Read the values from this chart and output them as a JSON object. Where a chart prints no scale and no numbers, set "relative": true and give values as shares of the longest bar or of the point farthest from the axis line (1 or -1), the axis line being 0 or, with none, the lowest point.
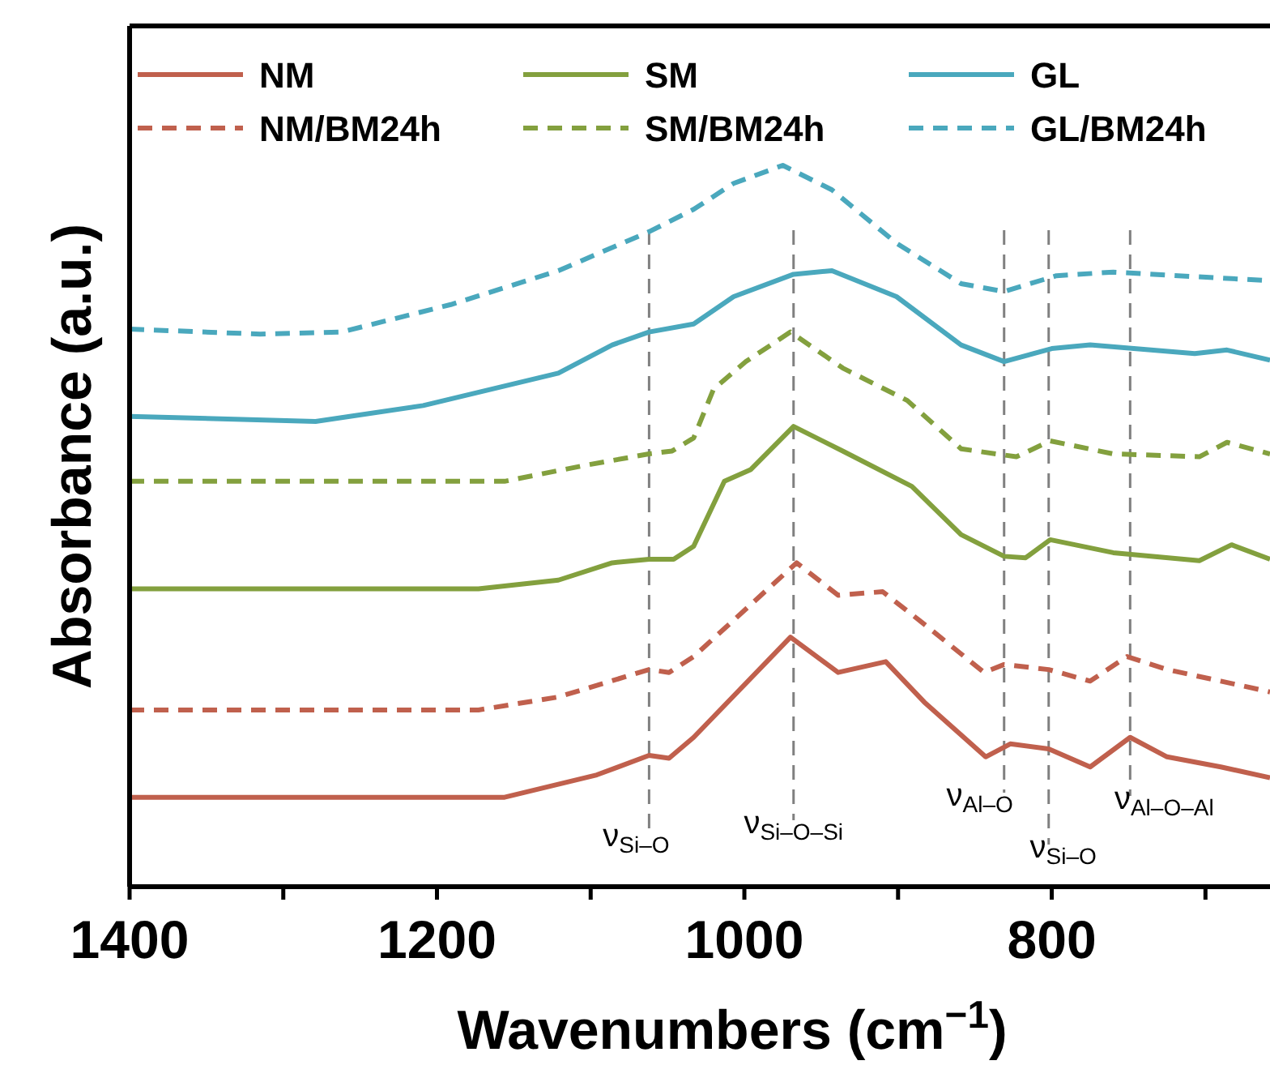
{
  "chart_data": {
    "type": "line",
    "relative": true,
    "xlabel": "Wavenumbers (cm$^{−1}$)",
    "ylabel": "Absorbance (a.u.)",
    "xlim": [
      1400,
      658
    ],
    "xticks": [
      1400,
      {
        "value": 1300,
        "label": null
      },
      1200,
      {
        "value": 1100,
        "label": null
      },
      1000,
      {
        "value": 900,
        "label": null
      },
      800,
      {
        "value": 700,
        "label": null
      }
    ],
    "tick_labels": "x",
    "grid": false,
    "legend": "top",
    "marker": "none",
    "series": [
      {
        "name": "NM",
        "color": "#c0604d",
        "line_style": "solid",
        "x": [
          1400,
          1156,
          1096,
          1062,
          1049,
          1033,
          970,
          939,
          908,
          883,
          843,
          827,
          802,
          775,
          749,
          725,
          690,
          658
        ],
        "values": [
          0.124,
          0.124,
          0.155,
          0.182,
          0.178,
          0.207,
          0.346,
          0.297,
          0.312,
          0.256,
          0.18,
          0.198,
          0.191,
          0.166,
          0.207,
          0.18,
          0.166,
          0.151
        ]
      },
      {
        "name": "SM",
        "color": "#83a03e",
        "line_style": "solid",
        "x": [
          1400,
          1173,
          1121,
          1086,
          1062,
          1046,
          1033,
          1013,
          996,
          968,
          936,
          891,
          859,
          831,
          817,
          801,
          760,
          704,
          683,
          658
        ],
        "values": [
          0.413,
          0.413,
          0.425,
          0.449,
          0.454,
          0.454,
          0.472,
          0.562,
          0.578,
          0.638,
          0.604,
          0.555,
          0.488,
          0.458,
          0.456,
          0.481,
          0.463,
          0.452,
          0.474,
          0.454
        ]
      },
      {
        "name": "GL",
        "color": "#4aa8bd",
        "line_style": "solid",
        "x": [
          1400,
          1279,
          1209,
          1121,
          1086,
          1062,
          1033,
          1007,
          968,
          943,
          901,
          859,
          831,
          800,
          775,
          707,
          686,
          658
        ],
        "values": [
          0.652,
          0.645,
          0.667,
          0.712,
          0.751,
          0.769,
          0.78,
          0.818,
          0.849,
          0.854,
          0.818,
          0.751,
          0.728,
          0.746,
          0.751,
          0.739,
          0.744,
          0.73
        ]
      },
      {
        "name": "NM/BM24h",
        "color": "#c0604d",
        "line_style": "dashed",
        "x": [
          1400,
          1173,
          1121,
          1062,
          1049,
          1033,
          966,
          939,
          910,
          886,
          844,
          831,
          802,
          775,
          751,
          725,
          690,
          658
        ],
        "values": [
          0.245,
          0.245,
          0.263,
          0.301,
          0.297,
          0.319,
          0.449,
          0.404,
          0.409,
          0.369,
          0.297,
          0.308,
          0.301,
          0.285,
          0.319,
          0.301,
          0.285,
          0.27
        ]
      },
      {
        "name": "SM/BM24h",
        "color": "#83a03e",
        "line_style": "dashed",
        "x": [
          1400,
          1156,
          1104,
          1062,
          1047,
          1033,
          1020,
          999,
          970,
          936,
          894,
          859,
          823,
          801,
          760,
          704,
          686,
          658
        ],
        "values": [
          0.562,
          0.562,
          0.584,
          0.6,
          0.604,
          0.622,
          0.69,
          0.728,
          0.769,
          0.719,
          0.674,
          0.607,
          0.596,
          0.618,
          0.6,
          0.596,
          0.616,
          0.6
        ]
      },
      {
        "name": "GL/BM24h",
        "color": "#4aa8bd",
        "line_style": "dashed",
        "x": [
          1400,
          1315,
          1262,
          1191,
          1121,
          1062,
          1033,
          1007,
          975,
          943,
          901,
          859,
          831,
          797,
          760,
          658
        ],
        "values": [
          0.773,
          0.766,
          0.769,
          0.807,
          0.854,
          0.908,
          0.939,
          0.975,
          1,
          0.966,
          0.892,
          0.836,
          0.825,
          0.847,
          0.852,
          0.84
        ]
      }
    ],
    "ref_lines": [
      {
        "axis": "x",
        "value": 1062,
        "label": "ν$_{Si–O}$",
        "color": "#808080",
        "line_style": "dashed"
      },
      {
        "axis": "x",
        "value": 968,
        "label": "ν$_{Si–O–Si}$",
        "color": "#808080",
        "line_style": "dashed"
      },
      {
        "axis": "x",
        "value": 831,
        "label": "ν$_{Al–O}$",
        "color": "#808080",
        "line_style": "dashed"
      },
      {
        "axis": "x",
        "value": 802,
        "label": "ν$_{Si–O}$",
        "color": "#808080",
        "line_style": "dashed"
      },
      {
        "axis": "x",
        "value": 749,
        "label": "ν$_{Al–O–Al}$",
        "color": "#808080",
        "line_style": "dashed"
      }
    ]
  }
}
